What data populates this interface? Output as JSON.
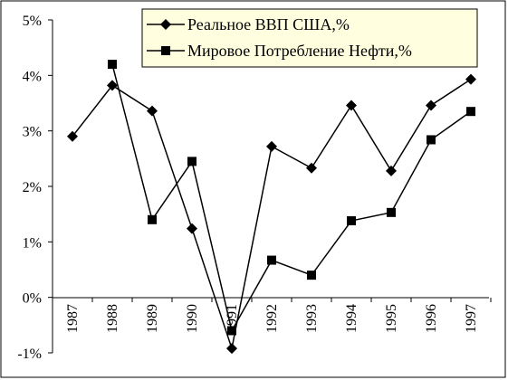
{
  "chart_data": {
    "type": "line",
    "categories": [
      "1987",
      "1988",
      "1989",
      "1990",
      "1991",
      "1992",
      "1993",
      "1994",
      "1995",
      "1996",
      "1997"
    ],
    "series": [
      {
        "name": "Реальное ВВП США,%",
        "marker": "diamond",
        "values": [
          2.9,
          3.82,
          3.36,
          1.24,
          -0.92,
          2.72,
          2.33,
          3.46,
          2.28,
          3.46,
          3.93
        ]
      },
      {
        "name": "Мировое Потребление Нефти,%",
        "marker": "square",
        "values": [
          null,
          4.2,
          1.4,
          2.45,
          -0.6,
          0.67,
          0.4,
          1.38,
          1.53,
          2.84,
          3.35
        ]
      }
    ],
    "y_tick_labels": [
      "5%",
      "4%",
      "3%",
      "2%",
      "1%",
      "0%",
      "-1%"
    ],
    "ylim": [
      -1,
      5
    ],
    "title": "",
    "xlabel": "",
    "ylabel": "",
    "legend_position": "top-right",
    "grid": false,
    "line_color": "#000000"
  }
}
